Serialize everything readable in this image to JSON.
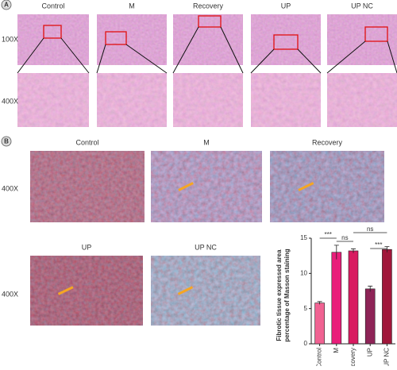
{
  "panel_a": {
    "label": "A",
    "columns": [
      "Control",
      "M",
      "Recovery",
      "UP",
      "UP NC"
    ],
    "rows": [
      "100X",
      "400X"
    ]
  },
  "panel_b": {
    "label": "B",
    "columns": [
      "Control",
      "M",
      "Recovery",
      "UP",
      "UP NC"
    ],
    "rows": [
      "400X",
      "400X"
    ]
  },
  "chart_data": {
    "type": "bar",
    "y_label": [
      "Fibrotic tissue expressed area",
      "percentage of Masson staining"
    ],
    "categories": [
      "Control",
      "M",
      "Recovery",
      "UP",
      "UP NC"
    ],
    "values": [
      5.8,
      13.0,
      13.2,
      7.8,
      13.4
    ],
    "errors": [
      0.2,
      1.0,
      0.3,
      0.4,
      0.4
    ],
    "colors": [
      "#f06292",
      "#e91e7a",
      "#d81b60",
      "#8e2457",
      "#a0163a"
    ],
    "ylim": [
      0,
      15
    ],
    "yticks": [
      0,
      5,
      10,
      15
    ],
    "comparisons": [
      {
        "label": "***",
        "pair": [
          "Control",
          "M"
        ]
      },
      {
        "label": "ns",
        "pair": [
          "M",
          "Recovery"
        ]
      },
      {
        "label": "ns",
        "pair": [
          "Recovery",
          "UP NC"
        ]
      },
      {
        "label": "***",
        "pair": [
          "UP",
          "UP NC"
        ]
      }
    ]
  }
}
